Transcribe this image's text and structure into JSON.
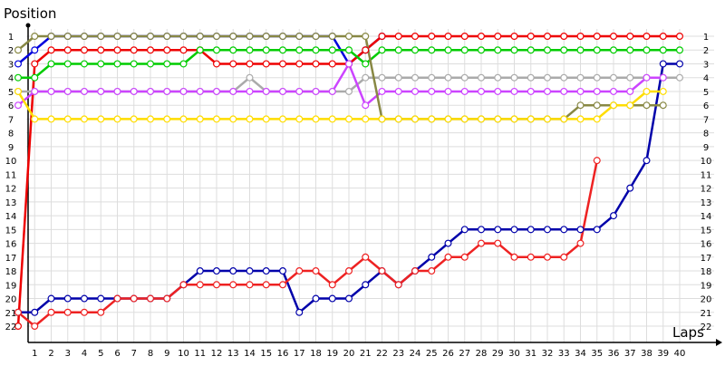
{
  "chart_data": {
    "type": "line",
    "ylabel": "Position",
    "xlabel": "Laps",
    "x_ticks": [
      1,
      2,
      3,
      4,
      5,
      6,
      7,
      8,
      9,
      10,
      11,
      12,
      13,
      14,
      15,
      16,
      17,
      18,
      19,
      20,
      21,
      22,
      23,
      24,
      25,
      26,
      27,
      28,
      29,
      30,
      31,
      32,
      33,
      34,
      35,
      36,
      37,
      38,
      39,
      40
    ],
    "y_ticks": [
      1,
      2,
      3,
      4,
      5,
      6,
      7,
      8,
      9,
      10,
      11,
      12,
      13,
      14,
      15,
      16,
      17,
      18,
      19,
      20,
      21,
      22
    ],
    "xlim": [
      0,
      40
    ],
    "ylim": [
      1,
      22
    ],
    "y_inverted": true,
    "grid": true,
    "series": [
      {
        "color": "#0000dd",
        "values": [
          3,
          2,
          1,
          1,
          1,
          1,
          1,
          1,
          1,
          1,
          1,
          1,
          1,
          1,
          1,
          1,
          1,
          1,
          1,
          1,
          3,
          2,
          1
        ]
      },
      {
        "color": "#ee0000",
        "values": [
          22,
          3,
          2,
          2,
          2,
          2,
          2,
          2,
          2,
          2,
          2,
          2,
          3,
          3,
          3,
          3,
          3,
          3,
          3,
          3,
          3,
          2,
          1,
          1,
          1,
          1,
          1,
          1,
          1,
          1,
          1,
          1,
          1,
          1,
          1,
          1,
          1,
          1,
          1,
          1,
          1
        ]
      },
      {
        "color": "#00cc00",
        "values": [
          4,
          4,
          3,
          3,
          3,
          3,
          3,
          3,
          3,
          3,
          3,
          2,
          2,
          2,
          2,
          2,
          2,
          2,
          2,
          2,
          2,
          3,
          2,
          2,
          2,
          2,
          2,
          2,
          2,
          2,
          2,
          2,
          2,
          2,
          2,
          2,
          2,
          2,
          2,
          2,
          2
        ]
      },
      {
        "color": "#0000aa",
        "values": [
          21,
          21,
          20,
          20,
          20,
          20,
          20,
          20,
          20,
          20,
          19,
          18,
          18,
          18,
          18,
          18,
          18,
          21,
          20,
          20,
          20,
          19,
          18,
          19,
          18,
          17,
          16,
          15,
          15,
          15,
          15,
          15,
          15,
          15,
          15,
          15,
          14,
          12,
          10,
          3,
          3
        ]
      },
      {
        "color": "#aaaaaa",
        "values": [
          5,
          5,
          5,
          5,
          5,
          5,
          5,
          5,
          5,
          5,
          5,
          5,
          5,
          5,
          4,
          5,
          5,
          5,
          5,
          5,
          5,
          4,
          4,
          4,
          4,
          4,
          4,
          4,
          4,
          4,
          4,
          4,
          4,
          4,
          4,
          4,
          4,
          4,
          4,
          4,
          4
        ]
      },
      {
        "color": "#cc44ff",
        "values": [
          6,
          5,
          5,
          5,
          5,
          5,
          5,
          5,
          5,
          5,
          5,
          5,
          5,
          5,
          5,
          5,
          5,
          5,
          5,
          5,
          3,
          6,
          5,
          5,
          5,
          5,
          5,
          5,
          5,
          5,
          5,
          5,
          5,
          5,
          5,
          5,
          5,
          5,
          4,
          4
        ]
      },
      {
        "color": "#888844",
        "values": [
          2,
          1,
          1,
          1,
          1,
          1,
          1,
          1,
          1,
          1,
          1,
          1,
          1,
          1,
          1,
          1,
          1,
          1,
          1,
          1,
          1,
          1,
          7,
          7,
          7,
          7,
          7,
          7,
          7,
          7,
          7,
          7,
          7,
          7,
          6,
          6,
          6,
          6,
          6,
          6
        ]
      },
      {
        "color": "#ee2222",
        "values": [
          21,
          22,
          21,
          21,
          21,
          21,
          20,
          20,
          20,
          20,
          19,
          19,
          19,
          19,
          19,
          19,
          19,
          18,
          18,
          19,
          18,
          17,
          18,
          19,
          18,
          18,
          17,
          17,
          16,
          16,
          17,
          17,
          17,
          17,
          16,
          10
        ]
      },
      {
        "color": "#ffdd00",
        "values": [
          5,
          7,
          7,
          7,
          7,
          7,
          7,
          7,
          7,
          7,
          7,
          7,
          7,
          7,
          7,
          7,
          7,
          7,
          7,
          7,
          7,
          7,
          7,
          7,
          7,
          7,
          7,
          7,
          7,
          7,
          7,
          7,
          7,
          7,
          7,
          7,
          6,
          6,
          5,
          5
        ]
      }
    ]
  }
}
